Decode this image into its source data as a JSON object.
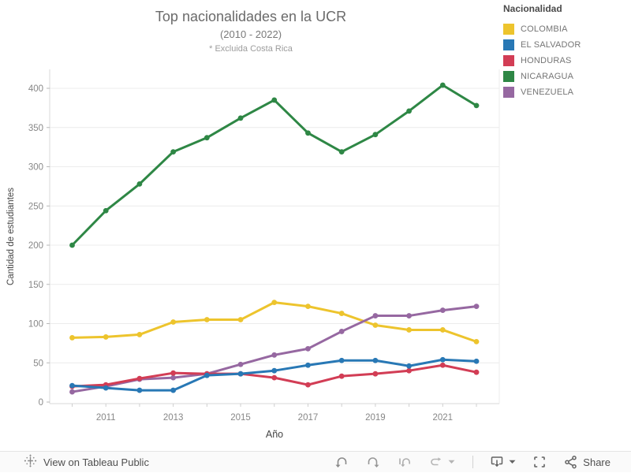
{
  "chart_data": {
    "type": "line",
    "title": "Top nacionalidades en la UCR",
    "subtitle": "(2010 - 2022)",
    "note": "* Excluida Costa Rica",
    "xlabel": "Año",
    "ylabel": "Cantidad de estudiantes",
    "legend_title": "Nacionalidad",
    "legend_position": "top-right",
    "grid": true,
    "ylim": [
      0,
      420
    ],
    "yticks": [
      0,
      50,
      100,
      150,
      200,
      250,
      300,
      350,
      400
    ],
    "x": [
      2010,
      2011,
      2012,
      2013,
      2014,
      2015,
      2016,
      2017,
      2018,
      2019,
      2020,
      2021,
      2022
    ],
    "xticks_labeled": [
      2011,
      2013,
      2015,
      2017,
      2019,
      2021
    ],
    "series": [
      {
        "name": "COLOMBIA",
        "color": "#EDC42D",
        "values": [
          82,
          83,
          86,
          102,
          105,
          105,
          127,
          122,
          113,
          98,
          92,
          92,
          77
        ]
      },
      {
        "name": "EL SALVADOR",
        "color": "#2878B5",
        "values": [
          21,
          18,
          15,
          15,
          34,
          36,
          40,
          47,
          53,
          53,
          46,
          54,
          52
        ]
      },
      {
        "name": "HONDURAS",
        "color": "#D23D55",
        "values": [
          20,
          22,
          30,
          37,
          36,
          36,
          31,
          22,
          33,
          36,
          40,
          47,
          38
        ]
      },
      {
        "name": "NICARAGUA",
        "color": "#2E8745",
        "values": [
          200,
          244,
          278,
          319,
          337,
          362,
          385,
          343,
          319,
          341,
          371,
          404,
          378
        ]
      },
      {
        "name": "VENEZUELA",
        "color": "#9668A1",
        "values": [
          13,
          20,
          29,
          31,
          36,
          48,
          60,
          68,
          90,
          110,
          110,
          117,
          122
        ]
      }
    ]
  },
  "toolbar": {
    "view_label": "View on Tableau Public",
    "share_label": "Share",
    "icons": [
      "tableau-logo",
      "undo",
      "redo",
      "reset",
      "replay",
      "download",
      "fullscreen",
      "share"
    ]
  }
}
